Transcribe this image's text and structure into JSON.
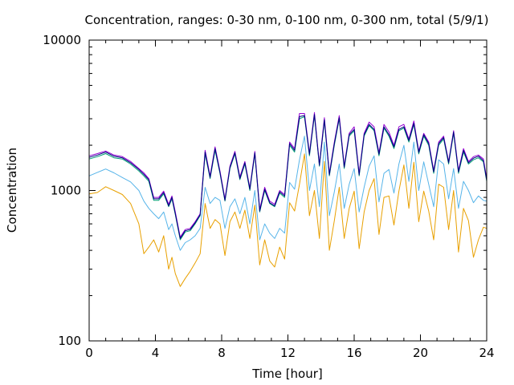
{
  "chart_data": {
    "type": "line",
    "title": "Concentration, ranges: 0-30 nm, 0-100 nm, 0-300 nm, total (5/9/1)",
    "xlabel": "Time [hour]",
    "ylabel": "Concentration",
    "xlim": [
      0,
      24
    ],
    "ylim": [
      100,
      10000
    ],
    "y_scale": "log",
    "grid": false,
    "x_ticks": [
      0,
      4,
      8,
      12,
      16,
      20,
      24
    ],
    "x_tick_labels": [
      "0",
      "4",
      "8",
      "12",
      "16",
      "20",
      "24"
    ],
    "y_ticks": [
      100,
      1000,
      10000
    ],
    "y_tick_labels": [
      "100",
      "1000",
      "10000"
    ],
    "x": [
      0,
      0.5,
      1,
      1.5,
      2,
      2.5,
      3,
      3.3,
      3.6,
      3.9,
      4.2,
      4.5,
      4.8,
      5,
      5.2,
      5.5,
      5.8,
      6.1,
      6.4,
      6.7,
      7,
      7.3,
      7.6,
      7.9,
      8.2,
      8.5,
      8.8,
      9.1,
      9.4,
      9.7,
      10,
      10.3,
      10.6,
      10.9,
      11.2,
      11.5,
      11.8,
      12.1,
      12.4,
      12.7,
      13,
      13.3,
      13.6,
      13.9,
      14.2,
      14.5,
      14.8,
      15.1,
      15.4,
      15.7,
      16,
      16.3,
      16.6,
      16.9,
      17.2,
      17.5,
      17.8,
      18.1,
      18.4,
      18.7,
      19,
      19.3,
      19.6,
      19.9,
      20.2,
      20.5,
      20.8,
      21.1,
      21.4,
      21.7,
      22,
      22.3,
      22.6,
      22.9,
      23.2,
      23.5,
      23.8,
      24
    ],
    "series": [
      {
        "color": "#e8a000",
        "values": [
          950,
          970,
          1060,
          1000,
          940,
          820,
          600,
          380,
          420,
          470,
          390,
          500,
          300,
          360,
          280,
          230,
          260,
          290,
          330,
          380,
          820,
          560,
          640,
          600,
          370,
          620,
          720,
          560,
          740,
          480,
          800,
          320,
          470,
          340,
          310,
          420,
          350,
          830,
          730,
          1100,
          1750,
          680,
          1000,
          480,
          1560,
          400,
          630,
          1050,
          480,
          760,
          990,
          410,
          720,
          1000,
          1200,
          510,
          900,
          920,
          590,
          990,
          1480,
          760,
          1540,
          620,
          990,
          730,
          470,
          1100,
          1050,
          550,
          1000,
          390,
          760,
          630,
          360,
          470,
          570,
          560
        ]
      },
      {
        "color": "#56b4e9",
        "values": [
          1250,
          1320,
          1390,
          1310,
          1220,
          1140,
          1000,
          850,
          760,
          700,
          650,
          720,
          550,
          600,
          500,
          400,
          450,
          470,
          500,
          560,
          1050,
          820,
          900,
          860,
          560,
          780,
          880,
          700,
          900,
          600,
          1000,
          470,
          600,
          520,
          480,
          560,
          520,
          1130,
          1020,
          1600,
          2300,
          1000,
          1500,
          780,
          2100,
          680,
          980,
          1500,
          760,
          1100,
          1400,
          720,
          1050,
          1450,
          1700,
          840,
          1300,
          1380,
          960,
          1500,
          2000,
          1150,
          2100,
          1000,
          1550,
          1100,
          780,
          1600,
          1500,
          880,
          1400,
          760,
          1150,
          1000,
          830,
          920,
          860,
          850
        ]
      },
      {
        "color": "#009e73",
        "values": [
          1620,
          1680,
          1760,
          1650,
          1620,
          1500,
          1350,
          1250,
          1150,
          860,
          860,
          950,
          780,
          880,
          690,
          470,
          530,
          540,
          600,
          680,
          1750,
          1200,
          1850,
          1300,
          850,
          1400,
          1750,
          1180,
          1500,
          1000,
          1750,
          720,
          1000,
          820,
          780,
          960,
          900,
          2000,
          1800,
          3000,
          3100,
          1700,
          3150,
          1450,
          2900,
          1250,
          2000,
          3000,
          1400,
          2300,
          2500,
          1250,
          2300,
          2700,
          2500,
          1700,
          2600,
          2300,
          1900,
          2500,
          2600,
          2100,
          2750,
          1750,
          2300,
          2000,
          1300,
          2000,
          2200,
          1500,
          2400,
          1300,
          1800,
          1500,
          1600,
          1650,
          1550,
          1150
        ]
      },
      {
        "color": "#9400d3",
        "values": [
          1700,
          1760,
          1830,
          1720,
          1680,
          1560,
          1400,
          1310,
          1200,
          900,
          900,
          990,
          810,
          920,
          720,
          490,
          550,
          560,
          620,
          700,
          1850,
          1250,
          1950,
          1350,
          880,
          1450,
          1820,
          1230,
          1560,
          1040,
          1820,
          750,
          1050,
          850,
          810,
          1000,
          940,
          2100,
          1900,
          3250,
          3250,
          1780,
          3300,
          1500,
          3050,
          1300,
          2100,
          3150,
          1460,
          2400,
          2650,
          1300,
          2400,
          2850,
          2650,
          1780,
          2750,
          2450,
          2000,
          2650,
          2750,
          2200,
          2900,
          1830,
          2400,
          2100,
          1360,
          2100,
          2300,
          1560,
          2500,
          1360,
          1900,
          1560,
          1680,
          1720,
          1620,
          1200
        ]
      },
      {
        "color": "#000080",
        "values": [
          1660,
          1720,
          1800,
          1690,
          1650,
          1530,
          1380,
          1280,
          1180,
          880,
          880,
          970,
          790,
          900,
          700,
          480,
          540,
          550,
          610,
          690,
          1800,
          1220,
          1900,
          1320,
          860,
          1420,
          1780,
          1200,
          1530,
          1020,
          1780,
          730,
          1020,
          830,
          790,
          980,
          920,
          2050,
          1850,
          3100,
          3150,
          1740,
          3200,
          1470,
          2950,
          1270,
          2050,
          3050,
          1430,
          2350,
          2550,
          1270,
          2350,
          2750,
          2550,
          1740,
          2650,
          2350,
          1950,
          2550,
          2650,
          2150,
          2800,
          1790,
          2350,
          2050,
          1330,
          2050,
          2250,
          1530,
          2450,
          1330,
          1850,
          1530,
          1640,
          1690,
          1580,
          1170
        ]
      }
    ]
  }
}
